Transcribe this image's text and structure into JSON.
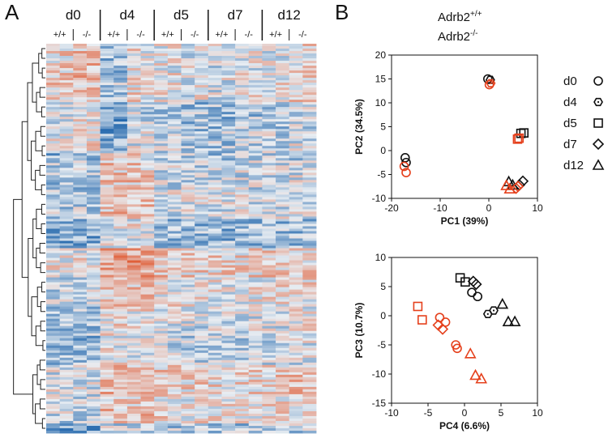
{
  "panel_a": {
    "letter": "A",
    "groups": [
      {
        "label": "d0",
        "genotypes": [
          "+/+",
          "-/-"
        ]
      },
      {
        "label": "d4",
        "genotypes": [
          "+/+",
          "-/-"
        ]
      },
      {
        "label": "d5",
        "genotypes": [
          "+/+",
          "-/-"
        ]
      },
      {
        "label": "d7",
        "genotypes": [
          "+/+",
          "-/-"
        ]
      },
      {
        "label": "d12",
        "genotypes": [
          "+/+",
          "-/-"
        ]
      }
    ],
    "heatmap": {
      "description_type": "clustered expression heatmap",
      "color_low": "#2166ac",
      "color_mid": "#e8edf2",
      "color_high": "#e0603a",
      "group_bias": [
        [
          0.25,
          0.45
        ],
        [
          -0.45,
          0.15
        ],
        [
          0.05,
          -0.05
        ],
        [
          -0.1,
          0.0
        ],
        [
          0.05,
          0.2
        ]
      ]
    }
  },
  "panel_b": {
    "letter": "B",
    "legend": {
      "wt": {
        "base": "Adrb2",
        "sup": "+/+",
        "color": "#111111"
      },
      "ko": {
        "base": "Adrb2",
        "sup": "-/-",
        "color": "#e5401c"
      }
    },
    "marker_legend": [
      {
        "label": "d0",
        "shape": "circle"
      },
      {
        "label": "d4",
        "shape": "hexagon"
      },
      {
        "label": "d5",
        "shape": "square"
      },
      {
        "label": "d7",
        "shape": "diamond"
      },
      {
        "label": "d12",
        "shape": "triangle"
      }
    ]
  },
  "chart_data": [
    {
      "type": "scatter",
      "title": "",
      "xlabel": "PC1 (39%)",
      "ylabel": "PC2 (34.5%)",
      "xlim": [
        -20,
        10
      ],
      "ylim": [
        -10,
        20
      ],
      "xticks": [
        -20,
        -10,
        0,
        10
      ],
      "yticks": [
        -10,
        -5,
        0,
        5,
        10,
        15,
        20
      ],
      "series": [
        {
          "name": "Adrb2+/+",
          "color": "#111111",
          "points": [
            {
              "shape": "circle",
              "x": -17.2,
              "y": -1.5
            },
            {
              "shape": "circle",
              "x": -17.0,
              "y": -2.5
            },
            {
              "shape": "circle",
              "x": -0.2,
              "y": 15.0
            },
            {
              "shape": "hexagon",
              "x": 0.3,
              "y": 14.8
            },
            {
              "shape": "square",
              "x": 6.6,
              "y": 3.6
            },
            {
              "shape": "square",
              "x": 7.2,
              "y": 3.7
            },
            {
              "shape": "diamond",
              "x": 6.3,
              "y": -7.2
            },
            {
              "shape": "diamond",
              "x": 7.0,
              "y": -6.4
            },
            {
              "shape": "triangle",
              "x": 4.1,
              "y": -6.5
            },
            {
              "shape": "triangle",
              "x": 4.9,
              "y": -7.2
            }
          ]
        },
        {
          "name": "Adrb2-/-",
          "color": "#e5401c",
          "points": [
            {
              "shape": "circle",
              "x": -17.4,
              "y": -3.3
            },
            {
              "shape": "circle",
              "x": -17.0,
              "y": -4.6
            },
            {
              "shape": "circle",
              "x": 0.1,
              "y": 13.8
            },
            {
              "shape": "hexagon",
              "x": 0.4,
              "y": 14.1
            },
            {
              "shape": "square",
              "x": 5.9,
              "y": 2.4
            },
            {
              "shape": "square",
              "x": 6.2,
              "y": 2.6
            },
            {
              "shape": "diamond",
              "x": 5.6,
              "y": -7.9
            },
            {
              "shape": "diamond",
              "x": 6.0,
              "y": -7.5
            },
            {
              "shape": "triangle",
              "x": 3.6,
              "y": -7.3
            },
            {
              "shape": "triangle",
              "x": 4.3,
              "y": -8.0
            }
          ]
        }
      ]
    },
    {
      "type": "scatter",
      "title": "",
      "xlabel": "PC4 (6.6%)",
      "ylabel": "PC3 (10.7%)",
      "xlim": [
        -10,
        10
      ],
      "ylim": [
        -15,
        10
      ],
      "xticks": [
        -10,
        -5,
        0,
        5,
        10
      ],
      "yticks": [
        -15,
        -10,
        -5,
        0,
        5,
        10
      ],
      "series": [
        {
          "name": "Adrb2+/+",
          "color": "#111111",
          "points": [
            {
              "shape": "circle",
              "x": 1.0,
              "y": 4.0
            },
            {
              "shape": "circle",
              "x": 1.8,
              "y": 3.3
            },
            {
              "shape": "hexagon",
              "x": 3.2,
              "y": 0.3
            },
            {
              "shape": "hexagon",
              "x": 4.0,
              "y": 0.9
            },
            {
              "shape": "square",
              "x": -0.6,
              "y": 6.5
            },
            {
              "shape": "square",
              "x": 0.1,
              "y": 5.8
            },
            {
              "shape": "diamond",
              "x": 1.2,
              "y": 5.9
            },
            {
              "shape": "diamond",
              "x": 1.6,
              "y": 5.4
            },
            {
              "shape": "triangle",
              "x": 5.2,
              "y": 2.0
            },
            {
              "shape": "triangle",
              "x": 6.0,
              "y": -1.0
            },
            {
              "shape": "triangle",
              "x": 6.9,
              "y": -1.0
            }
          ]
        },
        {
          "name": "Adrb2-/-",
          "color": "#e5401c",
          "points": [
            {
              "shape": "circle",
              "x": -3.4,
              "y": -0.3
            },
            {
              "shape": "circle",
              "x": -2.6,
              "y": -1.1
            },
            {
              "shape": "circle",
              "x": -1.2,
              "y": -5.0
            },
            {
              "shape": "circle",
              "x": -1.0,
              "y": -5.6
            },
            {
              "shape": "square",
              "x": -6.4,
              "y": 1.6
            },
            {
              "shape": "square",
              "x": -5.8,
              "y": -0.7
            },
            {
              "shape": "diamond",
              "x": -3.6,
              "y": -1.6
            },
            {
              "shape": "diamond",
              "x": -3.0,
              "y": -2.3
            },
            {
              "shape": "triangle",
              "x": 0.8,
              "y": -6.5
            },
            {
              "shape": "triangle",
              "x": 1.5,
              "y": -10.2
            },
            {
              "shape": "triangle",
              "x": 2.3,
              "y": -10.8
            }
          ]
        }
      ]
    }
  ]
}
